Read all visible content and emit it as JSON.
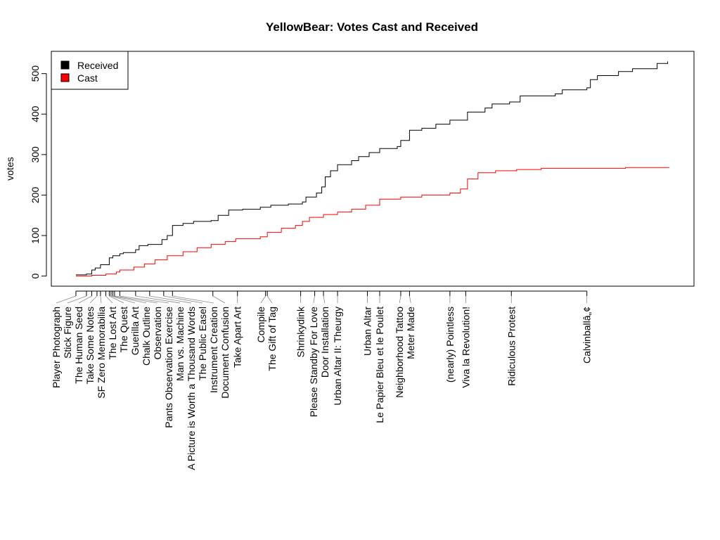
{
  "chart_data": {
    "type": "line",
    "title": "YellowBear: Votes Cast and Received",
    "xlabel": "",
    "ylabel": "votes",
    "xlim": [
      -14,
      352
    ],
    "ylim": [
      -25,
      555
    ],
    "yticks": [
      0,
      100,
      200,
      300,
      400,
      500
    ],
    "grid": false,
    "legend": {
      "placement": "top-left",
      "entries": [
        "Received",
        "Cast"
      ]
    },
    "series": [
      {
        "name": "Received",
        "color": "#000000",
        "step": true,
        "points": [
          [
            0,
            3
          ],
          [
            6,
            5
          ],
          [
            9,
            15
          ],
          [
            11,
            20
          ],
          [
            14,
            28
          ],
          [
            19,
            45
          ],
          [
            21,
            50
          ],
          [
            25,
            55
          ],
          [
            27,
            58
          ],
          [
            34,
            65
          ],
          [
            36,
            75
          ],
          [
            41,
            78
          ],
          [
            49,
            90
          ],
          [
            52,
            100
          ],
          [
            55,
            125
          ],
          [
            61,
            130
          ],
          [
            67,
            135
          ],
          [
            77,
            137
          ],
          [
            81,
            150
          ],
          [
            87,
            163
          ],
          [
            95,
            165
          ],
          [
            105,
            170
          ],
          [
            111,
            175
          ],
          [
            121,
            178
          ],
          [
            129,
            183
          ],
          [
            131,
            195
          ],
          [
            137,
            205
          ],
          [
            140,
            220
          ],
          [
            142,
            245
          ],
          [
            145,
            260
          ],
          [
            149,
            275
          ],
          [
            157,
            285
          ],
          [
            161,
            295
          ],
          [
            167,
            305
          ],
          [
            173,
            315
          ],
          [
            183,
            320
          ],
          [
            185,
            335
          ],
          [
            190,
            360
          ],
          [
            197,
            365
          ],
          [
            205,
            375
          ],
          [
            213,
            385
          ],
          [
            223,
            405
          ],
          [
            233,
            415
          ],
          [
            237,
            425
          ],
          [
            247,
            430
          ],
          [
            253,
            445
          ],
          [
            273,
            450
          ],
          [
            277,
            460
          ],
          [
            291,
            465
          ],
          [
            293,
            485
          ],
          [
            297,
            495
          ],
          [
            309,
            505
          ],
          [
            317,
            512
          ],
          [
            331,
            525
          ],
          [
            337,
            530
          ]
        ]
      },
      {
        "name": "Cast",
        "color": "#ff0000",
        "step": true,
        "points": [
          [
            0,
            0
          ],
          [
            9,
            2
          ],
          [
            17,
            5
          ],
          [
            23,
            10
          ],
          [
            25,
            15
          ],
          [
            33,
            22
          ],
          [
            39,
            30
          ],
          [
            45,
            40
          ],
          [
            52,
            50
          ],
          [
            61,
            60
          ],
          [
            69,
            70
          ],
          [
            77,
            78
          ],
          [
            85,
            85
          ],
          [
            91,
            92
          ],
          [
            105,
            97
          ],
          [
            109,
            108
          ],
          [
            117,
            118
          ],
          [
            125,
            125
          ],
          [
            129,
            135
          ],
          [
            133,
            145
          ],
          [
            141,
            152
          ],
          [
            149,
            158
          ],
          [
            157,
            165
          ],
          [
            165,
            175
          ],
          [
            173,
            190
          ],
          [
            185,
            195
          ],
          [
            197,
            200
          ],
          [
            213,
            205
          ],
          [
            219,
            215
          ],
          [
            223,
            240
          ],
          [
            229,
            255
          ],
          [
            239,
            260
          ],
          [
            251,
            263
          ],
          [
            265,
            266
          ],
          [
            313,
            268
          ],
          [
            338,
            268
          ]
        ]
      }
    ],
    "xticks": [
      {
        "x": 0,
        "label": "Player Photograph"
      },
      {
        "x": 6,
        "label": "Stick Figure"
      },
      {
        "x": 9,
        "label": "The Human Seed"
      },
      {
        "x": 12,
        "label": "Take Some Notes"
      },
      {
        "x": 14,
        "label": "SF Zero Memorabilia"
      },
      {
        "x": 17,
        "label": "The Lost Art"
      },
      {
        "x": 19,
        "label": "The Quest"
      },
      {
        "x": 20,
        "label": "Guerilla Art"
      },
      {
        "x": 21,
        "label": "Chalk Outline"
      },
      {
        "x": 22,
        "label": "Observation"
      },
      {
        "x": 25,
        "label": "Pants Observation Exercise"
      },
      {
        "x": 34,
        "label": "Man vs. Machine"
      },
      {
        "x": 42,
        "label": "A Picture is Worth a Thousand Words"
      },
      {
        "x": 50,
        "label": "The Public Easel"
      },
      {
        "x": 55,
        "label": "Instrument Creation"
      },
      {
        "x": 78,
        "label": "Document Confusion"
      },
      {
        "x": 92,
        "label": "Take Apart Art"
      },
      {
        "x": 108,
        "label": "Compile"
      },
      {
        "x": 109,
        "label": "The Gift of Tag"
      },
      {
        "x": 128,
        "label": "Shrinkydink"
      },
      {
        "x": 136,
        "label": "Please Standby For Love"
      },
      {
        "x": 141,
        "label": "Door Installation"
      },
      {
        "x": 149,
        "label": "Urban Altar II: Theurgy"
      },
      {
        "x": 166,
        "label": "Urban Altar"
      },
      {
        "x": 173,
        "label": "Le Papier Bleu et le Poulet"
      },
      {
        "x": 185,
        "label": "Neighborhood Tattoo"
      },
      {
        "x": 190,
        "label": "Meter Made"
      },
      {
        "x": 213,
        "label": "(nearly) Pointless"
      },
      {
        "x": 222,
        "label": "Viva la Revolution!"
      },
      {
        "x": 248,
        "label": "Ridiculous Protest"
      },
      {
        "x": 291,
        "label": "Calvinballâ„¢"
      }
    ]
  }
}
